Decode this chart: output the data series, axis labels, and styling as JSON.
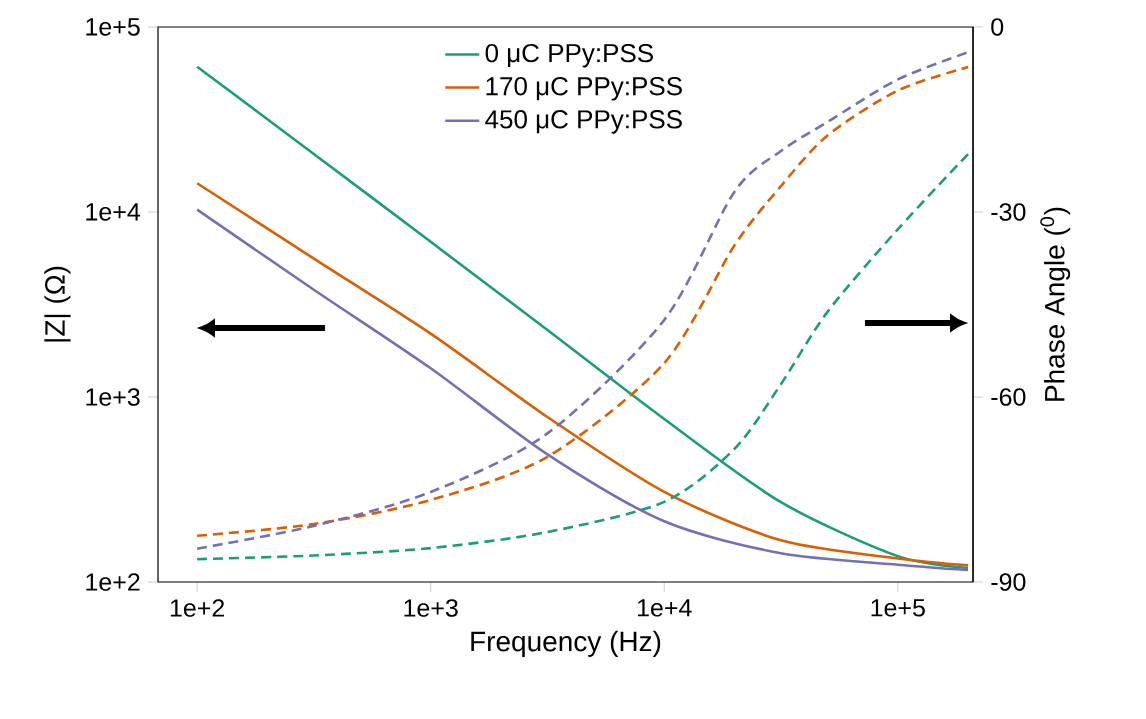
{
  "chart_data": {
    "type": "line",
    "xlabel": "Frequency (Hz)",
    "ylabel": "|Z| (Ω)",
    "y2label": "Phase Angle ($^{0}$)",
    "log": "xy",
    "legend": "top",
    "line_style": "solid",
    "xlim": [
      68,
      210000
    ],
    "ylim": [
      100,
      100000
    ],
    "y2lim": [
      -90,
      0
    ],
    "xticks": [
      {
        "value": 100,
        "label": "1e+2"
      },
      {
        "value": 1000,
        "label": "1e+3"
      },
      {
        "value": 10000,
        "label": "1e+4"
      },
      {
        "value": 100000,
        "label": "1e+5"
      }
    ],
    "yticks": [
      {
        "value": 100,
        "label": "1e+2"
      },
      {
        "value": 1000,
        "label": "1e+3"
      },
      {
        "value": 10000,
        "label": "1e+4"
      },
      {
        "value": 100000,
        "label": "1e+5"
      }
    ],
    "y2ticks": [
      -90,
      -60,
      -30,
      0
    ],
    "series": [
      {
        "name": "0 μC PPy:PSS",
        "color": "#1b9e77",
        "x": [
          100,
          316,
          1000,
          3162,
          10000,
          31623,
          100000,
          200000
        ],
        "values": [
          61000,
          20600,
          6900,
          2300,
          760,
          270,
          138,
          119
        ]
      },
      {
        "name": "170 μC PPy:PSS",
        "color": "#d95f02",
        "x": [
          100,
          316,
          1000,
          3162,
          10000,
          31623,
          100000,
          200000
        ],
        "values": [
          14300,
          5600,
          2200,
          780,
          307,
          168,
          134,
          123
        ]
      },
      {
        "name": "450 μC PPy:PSS",
        "color": "#7570b3",
        "x": [
          100,
          316,
          1000,
          3162,
          10000,
          31623,
          100000,
          200000
        ],
        "values": [
          10300,
          3800,
          1430,
          490,
          213,
          143,
          124,
          116
        ]
      },
      {
        "color": "#1b9e77",
        "axis": "y2",
        "line_style": "dashed",
        "x": [
          100,
          316,
          1000,
          3162,
          10000,
          20000,
          31623,
          50000,
          100000,
          200000
        ],
        "values": [
          -86.3,
          -85.7,
          -84.5,
          -81.9,
          -77.0,
          -68.4,
          -57.9,
          -46.2,
          -32.8,
          -20.6
        ]
      },
      {
        "color": "#d95f02",
        "axis": "y2",
        "line_style": "dashed",
        "x": [
          100,
          316,
          1000,
          3162,
          10000,
          20000,
          31623,
          50000,
          100000,
          200000
        ],
        "values": [
          -82.5,
          -80.6,
          -76.7,
          -69.7,
          -54.5,
          -35.4,
          -25.8,
          -17.6,
          -10.3,
          -6.5
        ]
      },
      {
        "color": "#7570b3",
        "axis": "y2",
        "line_style": "dashed",
        "x": [
          100,
          316,
          1000,
          3162,
          10000,
          20000,
          31623,
          50000,
          100000,
          200000
        ],
        "values": [
          -84.6,
          -80.9,
          -75.4,
          -65.9,
          -47.5,
          -26.7,
          -20.1,
          -15.4,
          -8.5,
          -4.1
        ]
      }
    ]
  }
}
